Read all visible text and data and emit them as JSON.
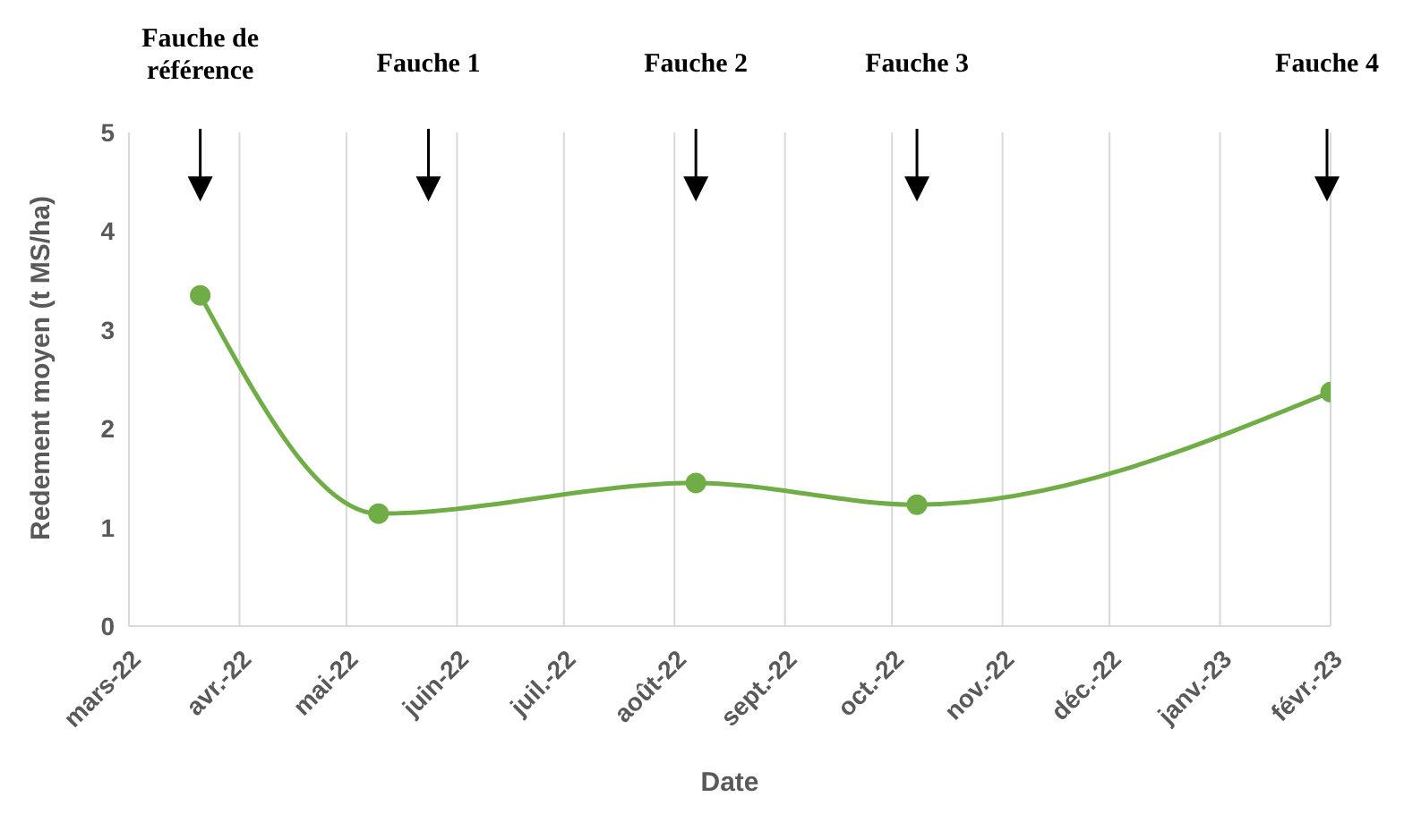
{
  "chart_data": {
    "type": "line",
    "xlabel": "Date",
    "ylabel": "Redement moyen (t MS/ha)",
    "x": [
      "2022-03-21",
      "2022-05-10",
      "2022-08-07",
      "2022-10-08",
      "2023-02-01"
    ],
    "series": [
      {
        "color": "#70ad47",
        "values": [
          3.35,
          1.14,
          1.45,
          1.23,
          2.37
        ]
      }
    ],
    "xlim": [
      "2022-03-01",
      "2023-02-01"
    ],
    "xticks": [
      {
        "value": "2022-03-01",
        "label": "mars-22"
      },
      {
        "value": "2022-04-01",
        "label": "avr.-22"
      },
      {
        "value": "2022-05-01",
        "label": "mai-22"
      },
      {
        "value": "2022-06-01",
        "label": "juin-22"
      },
      {
        "value": "2022-07-01",
        "label": "juil.-22"
      },
      {
        "value": "2022-08-01",
        "label": "août-22"
      },
      {
        "value": "2022-09-01",
        "label": "sept.-22"
      },
      {
        "value": "2022-10-01",
        "label": "oct.-22"
      },
      {
        "value": "2022-11-01",
        "label": "nov.-22"
      },
      {
        "value": "2022-12-01",
        "label": "déc.-22"
      },
      {
        "value": "2023-01-01",
        "label": "janv.-23"
      },
      {
        "value": "2023-02-01",
        "label": "févr.-23"
      }
    ],
    "ylim": [
      0,
      5
    ],
    "yticks": [
      0,
      1,
      2,
      3,
      4,
      5
    ],
    "grid": "x",
    "marker": "circle",
    "line_style": "solid",
    "ref_lines": [
      {
        "axis": "x",
        "value": "2022-03-21",
        "label": "Fauche de référence"
      },
      {
        "axis": "x",
        "value": "2022-05-24",
        "label": "Fauche 1"
      },
      {
        "axis": "x",
        "value": "2022-08-07",
        "label": "Fauche 2"
      },
      {
        "axis": "x",
        "value": "2022-10-08",
        "label": "Fauche 3"
      },
      {
        "axis": "x",
        "value": "2023-01-31",
        "label": "Fauche 4"
      }
    ]
  }
}
